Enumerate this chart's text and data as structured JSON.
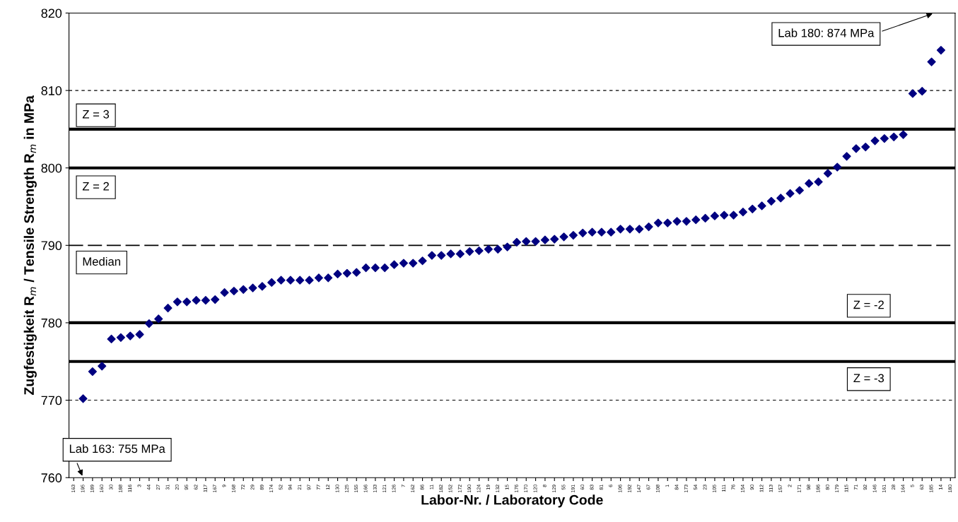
{
  "chart_data": {
    "type": "scatter",
    "xlabel": "Labor-Nr. / Laboratory Code",
    "ylabel": "Zugfestigkeit R$_{m}$ / Tensile Strength R$_{m}$ in MPa",
    "categories": [
      "163",
      "195",
      "189",
      "160",
      "30",
      "188",
      "116",
      "3",
      "44",
      "27",
      "31",
      "20",
      "95",
      "62",
      "117",
      "167",
      "9",
      "168",
      "72",
      "29",
      "89",
      "174",
      "52",
      "94",
      "21",
      "97",
      "77",
      "12",
      "130",
      "125",
      "155",
      "166",
      "133",
      "121",
      "126",
      "7",
      "162",
      "86",
      "11",
      "182",
      "152",
      "172",
      "190",
      "124",
      "19",
      "132",
      "15",
      "176",
      "170",
      "120",
      "8",
      "129",
      "55",
      "191",
      "60",
      "83",
      "81",
      "6",
      "106",
      "192",
      "147",
      "67",
      "108",
      "1",
      "84",
      "173",
      "54",
      "23",
      "105",
      "111",
      "76",
      "154",
      "90",
      "112",
      "113",
      "157",
      "2",
      "171",
      "98",
      "186",
      "80",
      "179",
      "115",
      "71",
      "92",
      "146",
      "161",
      "28",
      "164",
      "5",
      "63",
      "185",
      "14",
      "180"
    ],
    "series": [
      {
        "color": "#000080",
        "values": [
          null,
          770.2,
          773.7,
          774.4,
          777.9,
          778.1,
          778.3,
          778.5,
          779.9,
          780.5,
          781.9,
          782.7,
          782.7,
          782.9,
          782.9,
          783.0,
          783.9,
          784.1,
          784.3,
          784.5,
          784.7,
          785.2,
          785.5,
          785.5,
          785.5,
          785.5,
          785.8,
          785.8,
          786.3,
          786.4,
          786.5,
          787.1,
          787.1,
          787.1,
          787.5,
          787.7,
          787.7,
          788.0,
          788.7,
          788.7,
          788.9,
          788.9,
          789.2,
          789.3,
          789.5,
          789.5,
          789.8,
          790.4,
          790.5,
          790.5,
          790.7,
          790.8,
          791.1,
          791.3,
          791.6,
          791.7,
          791.7,
          791.7,
          792.1,
          792.1,
          792.1,
          792.4,
          792.9,
          792.9,
          793.1,
          793.1,
          793.3,
          793.5,
          793.8,
          793.9,
          793.9,
          794.3,
          794.7,
          795.1,
          795.7,
          796.1,
          796.7,
          797.1,
          798.0,
          798.2,
          799.3,
          800.1,
          801.5,
          802.5,
          802.7,
          803.5,
          803.8,
          804.0,
          804.3,
          809.6,
          809.9,
          813.7,
          815.2,
          null
        ]
      }
    ],
    "ylim": [
      760,
      820
    ],
    "yticks": [
      760,
      770,
      780,
      790,
      800,
      810,
      820
    ],
    "marker": "diamond",
    "grid": false,
    "legend": false,
    "ref_lines": [
      {
        "axis": "y",
        "value": 810,
        "line_style": "dotted",
        "color": "#000000"
      },
      {
        "axis": "y",
        "value": 805,
        "line_style": "solid",
        "color": "#000000"
      },
      {
        "axis": "y",
        "value": 800,
        "line_style": "solid",
        "color": "#000000"
      },
      {
        "axis": "y",
        "value": 790,
        "line_style": "dashed",
        "color": "#000000"
      },
      {
        "axis": "y",
        "value": 780,
        "line_style": "solid",
        "color": "#000000"
      },
      {
        "axis": "y",
        "value": 775,
        "line_style": "solid",
        "color": "#000000"
      },
      {
        "axis": "y",
        "value": 770,
        "line_style": "dotted",
        "color": "#000000"
      }
    ],
    "annotations": [
      "Z = 3",
      "Z = 2",
      "Median",
      "Z = -2",
      "Z = -3",
      "Lab 163: 755 MPa",
      "Lab 180: 874 MPa"
    ]
  }
}
